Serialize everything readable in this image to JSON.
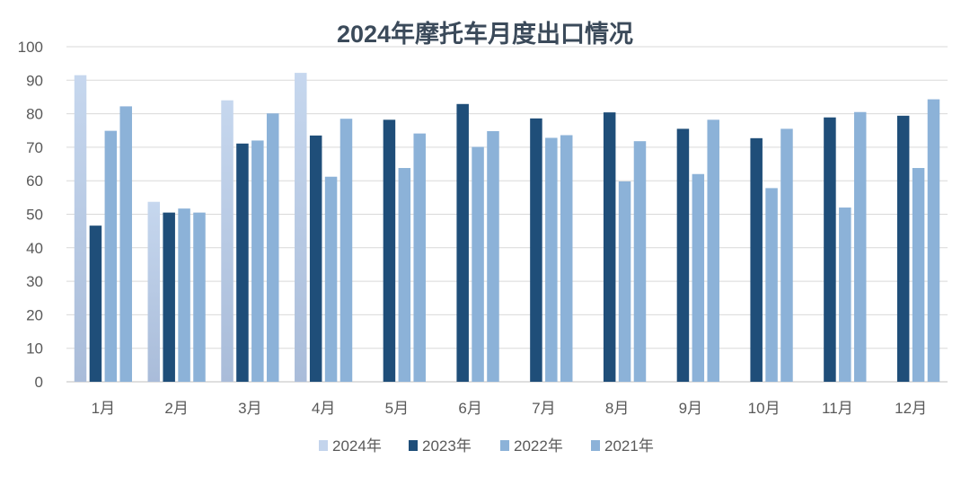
{
  "chart_data": {
    "type": "bar",
    "title": "2024年摩托车月度出口情况",
    "categories": [
      "1月",
      "2月",
      "3月",
      "4月",
      "5月",
      "6月",
      "7月",
      "8月",
      "9月",
      "10月",
      "11月",
      "12月"
    ],
    "series": [
      {
        "name": "2024年",
        "color": "#c3d4ec",
        "values": [
          91.5,
          53.7,
          84.0,
          92.2,
          null,
          null,
          null,
          null,
          null,
          null,
          null,
          null
        ]
      },
      {
        "name": "2023年",
        "color": "#1f4e79",
        "values": [
          46.6,
          50.5,
          71.1,
          73.5,
          78.2,
          82.9,
          78.6,
          80.4,
          75.5,
          72.7,
          78.9,
          79.4
        ]
      },
      {
        "name": "2022年",
        "color": "#8cb2d8",
        "values": [
          74.9,
          51.7,
          72.0,
          61.2,
          63.8,
          70.1,
          72.8,
          59.8,
          62.0,
          57.8,
          52.0,
          63.8
        ]
      },
      {
        "name": "2021年",
        "color": "#8cb2d8",
        "values": [
          82.2,
          50.5,
          80.1,
          78.5,
          74.1,
          74.8,
          73.6,
          71.8,
          78.2,
          75.5,
          80.5,
          84.3
        ]
      }
    ],
    "ylim": [
      0,
      100
    ],
    "yticks": [
      0,
      10,
      20,
      30,
      40,
      50,
      60,
      70,
      80,
      90,
      100
    ],
    "grid": true,
    "legend": "bottom-center"
  }
}
